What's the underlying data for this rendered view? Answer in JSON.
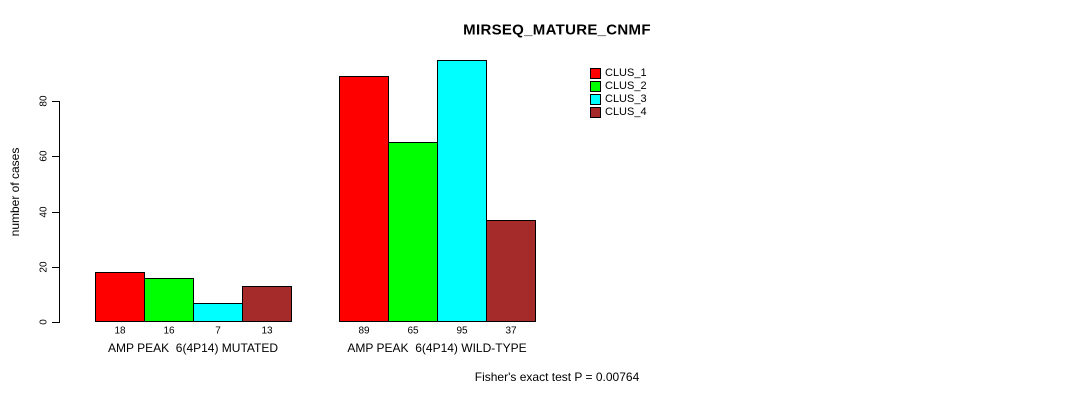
{
  "chart_data": {
    "type": "bar",
    "title": "MIRSEQ_MATURE_CNMF",
    "ylabel": "number of cases",
    "xlabel": "",
    "categories": [
      "AMP PEAK  6(4P14) MUTATED",
      "AMP PEAK  6(4P14) WILD-TYPE"
    ],
    "series": [
      {
        "name": "CLUS_1",
        "color": "#ff0000",
        "values": [
          18,
          89
        ]
      },
      {
        "name": "CLUS_2",
        "color": "#00ff00",
        "values": [
          16,
          65
        ]
      },
      {
        "name": "CLUS_3",
        "color": "#00ffff",
        "values": [
          7,
          95
        ]
      },
      {
        "name": "CLUS_4",
        "color": "#a52a2a",
        "values": [
          13,
          37
        ]
      }
    ],
    "yticks": [
      0,
      20,
      40,
      60,
      80
    ],
    "ylim": [
      0,
      80
    ],
    "bar_value_labels": [
      [
        18,
        16,
        7,
        13
      ],
      [
        89,
        65,
        95,
        37
      ]
    ],
    "legend_position": "top-right",
    "grid": false,
    "annotation": "Fisher's exact test P = 0.00764",
    "colors": {
      "background": "#ffffff",
      "axis": "#000000",
      "text": "#000000"
    }
  }
}
